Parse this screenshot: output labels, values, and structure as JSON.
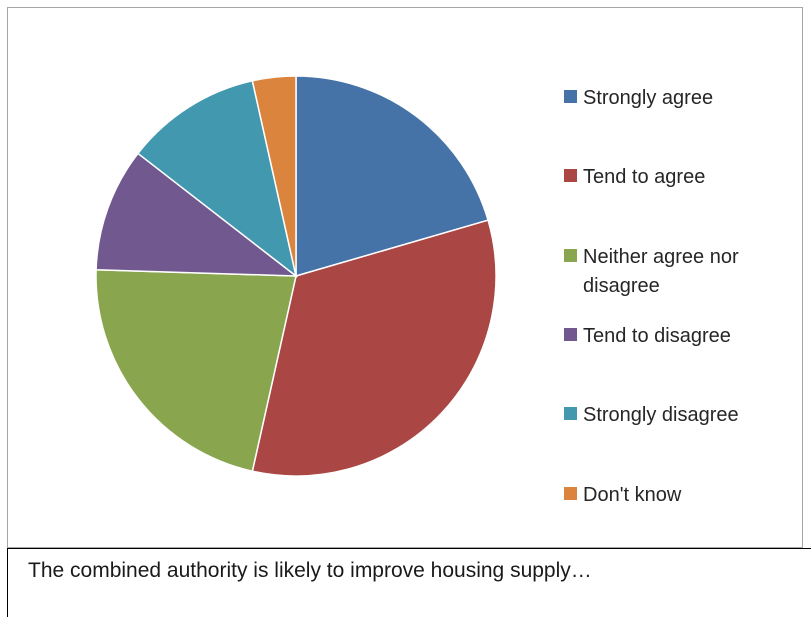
{
  "chart_data": {
    "type": "pie",
    "title": "",
    "start_angle_deg": 0,
    "direction": "clockwise",
    "slices": [
      {
        "label": "Strongly agree",
        "value": 20.5,
        "color": "#4572a7"
      },
      {
        "label": "Tend to agree",
        "value": 33.0,
        "color": "#aa4643"
      },
      {
        "label": "Neither agree nor disagree",
        "value": 22.0,
        "color": "#89a54e"
      },
      {
        "label": "Tend to disagree",
        "value": 10.0,
        "color": "#71588f"
      },
      {
        "label": "Strongly disagree",
        "value": 11.0,
        "color": "#4198af"
      },
      {
        "label": "Don't know",
        "value": 3.5,
        "color": "#db843d"
      }
    ],
    "legend_position": "right"
  },
  "caption": {
    "text": "The combined authority is likely to improve housing supply…"
  }
}
